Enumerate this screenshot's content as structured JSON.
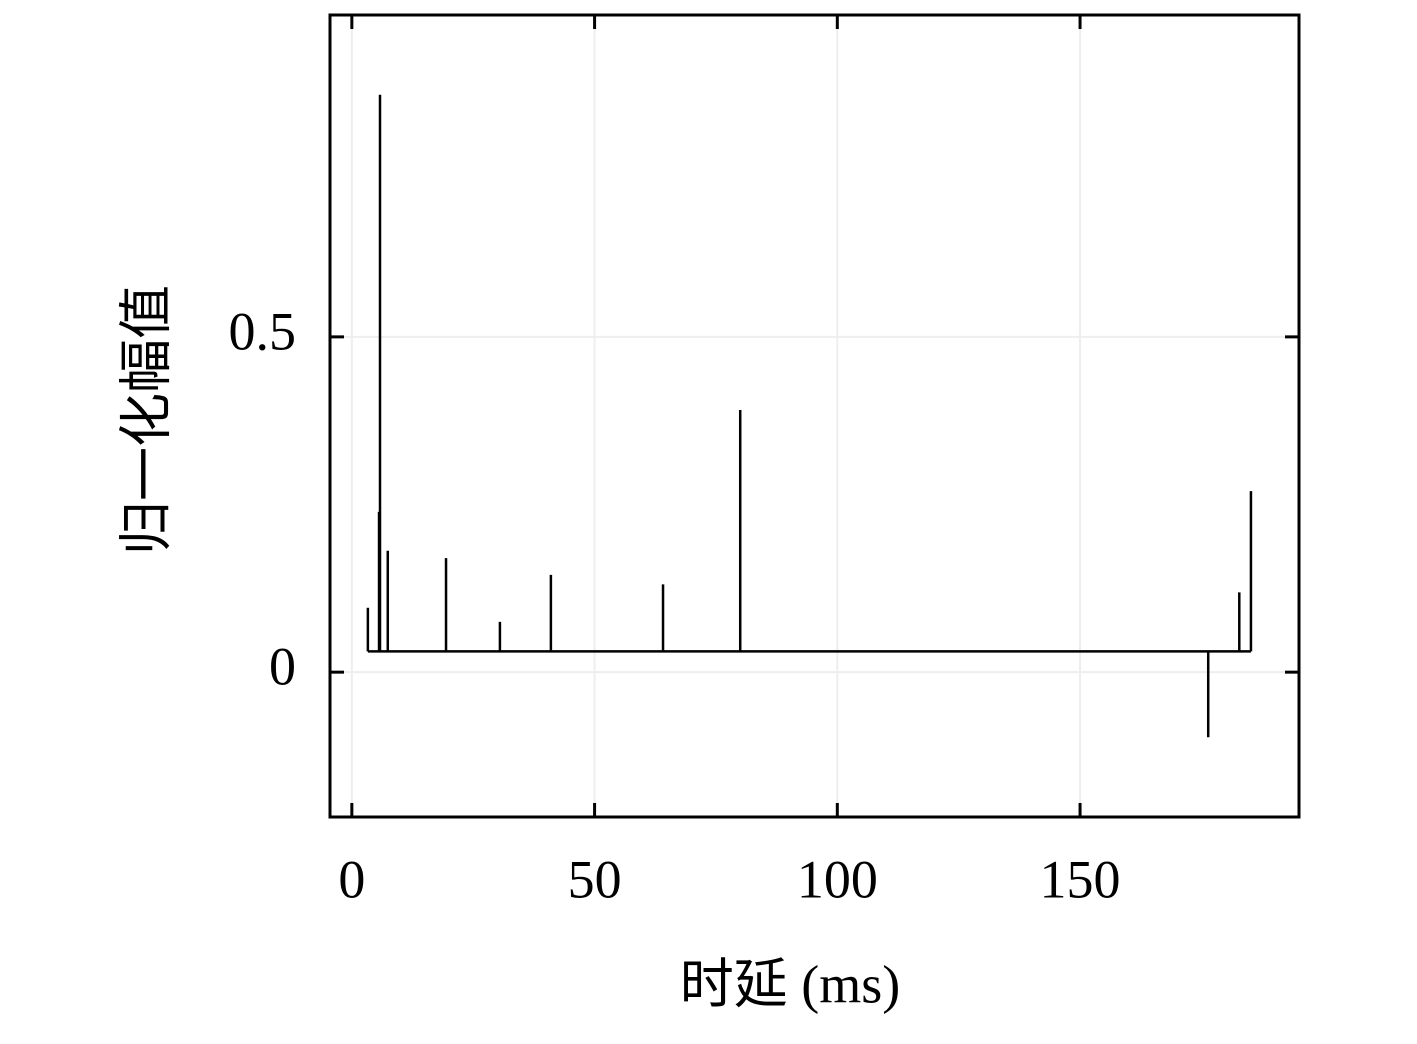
{
  "chart_data": {
    "type": "stem",
    "x_label": "时延 (ms)",
    "y_label": "归一化幅值",
    "x": [
      3.3,
      5.6,
      5.8,
      7.4,
      19.4,
      30.5,
      41.0,
      64.1,
      80.0,
      176.4,
      182.8,
      185.2
    ],
    "values": [
      0.096,
      0.239,
      0.861,
      0.181,
      0.17,
      0.075,
      0.145,
      0.131,
      0.391,
      -0.097,
      0.119,
      0.27
    ],
    "baseline": 0.031,
    "color": "#000000",
    "xlim": [
      -4.5,
      195.1
    ],
    "ylim": [
      -0.216,
      0.98
    ],
    "xticks": [
      0,
      50,
      100,
      150
    ],
    "yticks": [
      0,
      0.5
    ],
    "grid": true
  }
}
